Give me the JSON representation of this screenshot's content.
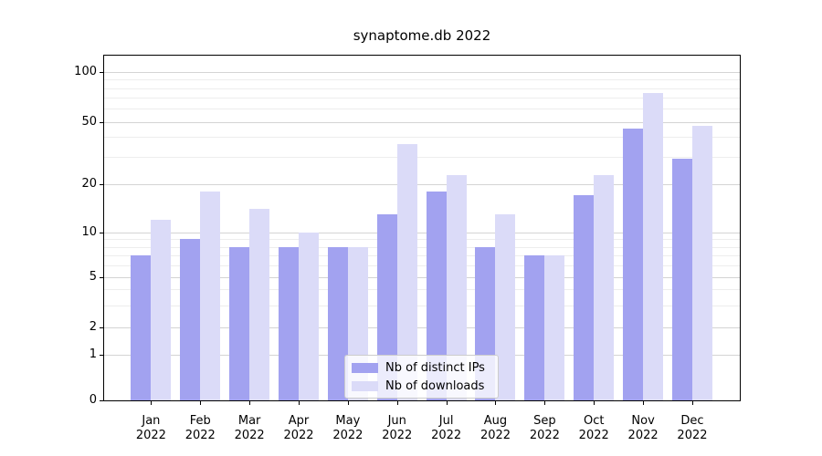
{
  "title": "synaptome.db 2022",
  "chart_data": {
    "type": "bar",
    "categories": [
      "Jan 2022",
      "Feb 2022",
      "Mar 2022",
      "Apr 2022",
      "May 2022",
      "Jun 2022",
      "Jul 2022",
      "Aug 2022",
      "Sep 2022",
      "Oct 2022",
      "Nov 2022",
      "Dec 2022"
    ],
    "months": [
      "Jan",
      "Feb",
      "Mar",
      "Apr",
      "May",
      "Jun",
      "Jul",
      "Aug",
      "Sep",
      "Oct",
      "Nov",
      "Dec"
    ],
    "year": "2022",
    "series": [
      {
        "key": "ips",
        "name": "Nb of distinct IPs",
        "color": "#a2a2f0",
        "values": [
          7,
          9,
          8,
          8,
          8,
          13,
          18,
          8,
          7,
          17,
          45,
          29
        ]
      },
      {
        "key": "downloads",
        "name": "Nb of downloads",
        "color": "#dbdbf8",
        "values": [
          12,
          18,
          14,
          10,
          8,
          36,
          23,
          13,
          7,
          23,
          75,
          47
        ]
      }
    ],
    "yticks": [
      0,
      1,
      2,
      5,
      10,
      20,
      50,
      100
    ],
    "minor_yticks": [
      3,
      4,
      6,
      7,
      8,
      9,
      30,
      40,
      60,
      70,
      80,
      90
    ],
    "scale": "symlog",
    "ylim": [
      0,
      126
    ],
    "xlabel": "",
    "ylabel": "",
    "grid": "horizontal",
    "legend_position": "lower center"
  }
}
